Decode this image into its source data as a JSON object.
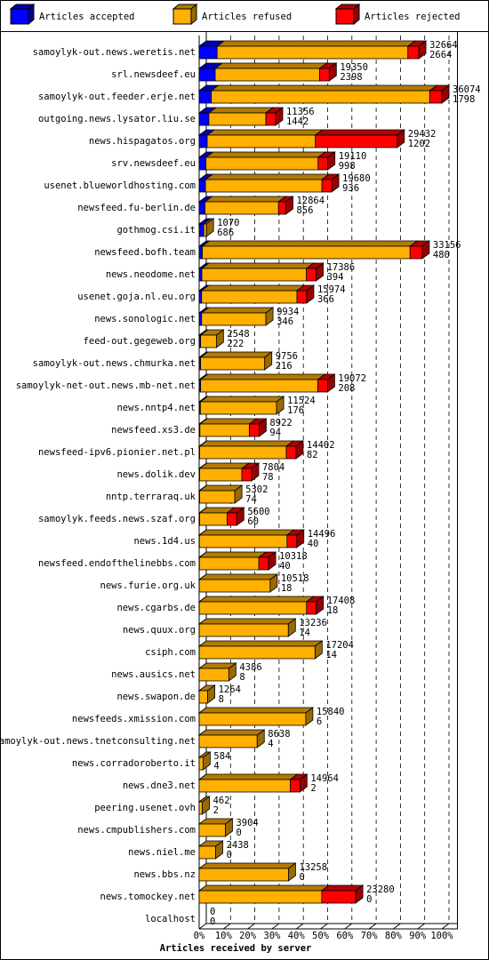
{
  "chart_data": {
    "type": "bar3d-stacked-horizontal",
    "title": "Articles received by server",
    "categories": [
      "samoylyk-out.news.weretis.net",
      "srl.newsdeef.eu",
      "samoylyk-out.feeder.erje.net",
      "outgoing.news.lysator.liu.se",
      "news.hispagatos.org",
      "srv.newsdeef.eu",
      "usenet.blueworldhosting.com",
      "newsfeed.fu-berlin.de",
      "gothmog.csi.it",
      "newsfeed.bofh.team",
      "news.neodome.net",
      "usenet.goja.nl.eu.org",
      "news.sonologic.net",
      "feed-out.gegeweb.org",
      "samoylyk-out.news.chmurka.net",
      "samoylyk-net-out.news.mb-net.net",
      "news.nntp4.net",
      "newsfeed.xs3.de",
      "newsfeed-ipv6.pionier.net.pl",
      "news.dolik.dev",
      "nntp.terraraq.uk",
      "samoylyk.feeds.news.szaf.org",
      "news.1d4.us",
      "newsfeed.endofthelinebbs.com",
      "news.furie.org.uk",
      "news.cgarbs.de",
      "news.quux.org",
      "csiph.com",
      "news.ausics.net",
      "news.swapon.de",
      "newsfeeds.xmission.com",
      "samoylyk-out.news.tnetconsulting.net",
      "news.corradoroberto.it",
      "news.dne3.net",
      "peering.usenet.ovh",
      "news.cmpublishers.com",
      "news.niel.me",
      "news.bbs.nz",
      "news.tomockey.net",
      "localhost"
    ],
    "offered": [
      32664,
      19350,
      36074,
      11356,
      29432,
      19110,
      19680,
      12864,
      1070,
      33156,
      17386,
      15974,
      9934,
      2548,
      9756,
      19072,
      11524,
      8922,
      14402,
      7804,
      5302,
      5600,
      14496,
      10318,
      10518,
      17408,
      13236,
      17204,
      4386,
      1264,
      15840,
      8638,
      584,
      14964,
      462,
      3904,
      2438,
      13258,
      23280,
      0
    ],
    "accepted": [
      2664,
      2398,
      1798,
      1442,
      1202,
      998,
      936,
      856,
      686,
      480,
      394,
      366,
      346,
      222,
      216,
      208,
      176,
      94,
      82,
      78,
      74,
      60,
      40,
      40,
      18,
      18,
      14,
      14,
      8,
      8,
      6,
      4,
      4,
      2,
      2,
      0,
      0,
      0,
      0,
      0
    ],
    "series": [
      {
        "name": "Articles accepted",
        "color": "#0000ff",
        "values": [
          7.4,
          6.6,
          5.0,
          4.0,
          3.3,
          2.8,
          2.6,
          2.4,
          1.9,
          1.3,
          1.1,
          1.0,
          1.0,
          0.6,
          0.6,
          0.6,
          0.5,
          0.3,
          0.2,
          0.2,
          0.2,
          0.2,
          0.1,
          0.1,
          0.05,
          0.05,
          0.04,
          0.04,
          0.02,
          0.02,
          0.02,
          0.01,
          0.01,
          0.01,
          0.01,
          0,
          0,
          0,
          0,
          0
        ]
      },
      {
        "name": "Articles refused",
        "color": "#ffb000",
        "values": [
          78.6,
          43.0,
          90.0,
          23.5,
          44.6,
          46.2,
          48.0,
          30.3,
          1.1,
          85.6,
          43.1,
          39.3,
          26.5,
          6.5,
          26.4,
          48.3,
          31.4,
          20.4,
          35.7,
          17.4,
          14.5,
          11.3,
          36.1,
          24.5,
          29.2,
          44.2,
          36.7,
          47.7,
          12.2,
          3.5,
          43.9,
          23.9,
          1.6,
          37.5,
          1.3,
          10.8,
          6.8,
          36.8,
          50.5,
          0
        ]
      },
      {
        "name": "Articles rejected",
        "color": "#ff0000",
        "values": [
          4.5,
          4.0,
          5.0,
          4.0,
          33.7,
          4.0,
          4.0,
          3.0,
          0,
          5.0,
          4.0,
          4.0,
          0,
          0,
          0,
          4.0,
          0,
          4.0,
          4.0,
          4.0,
          0,
          4.0,
          4.0,
          4.0,
          0,
          4.0,
          0,
          0,
          0,
          0,
          0,
          0,
          0,
          4.0,
          0,
          0,
          0,
          0,
          14.0,
          0
        ]
      }
    ],
    "xlim": [
      0,
      100
    ],
    "xticks": [
      {
        "value": 0,
        "label": "0%"
      },
      {
        "value": 10,
        "label": "10%"
      },
      {
        "value": 20,
        "label": "20%"
      },
      {
        "value": 30,
        "label": "30%"
      },
      {
        "value": 40,
        "label": "40%"
      },
      {
        "value": 50,
        "label": "50%"
      },
      {
        "value": 60,
        "label": "60%"
      },
      {
        "value": 70,
        "label": "70%"
      },
      {
        "value": 80,
        "label": "80%"
      },
      {
        "value": 90,
        "label": "90%"
      },
      {
        "value": 100,
        "label": "100%"
      }
    ],
    "grid": true
  }
}
